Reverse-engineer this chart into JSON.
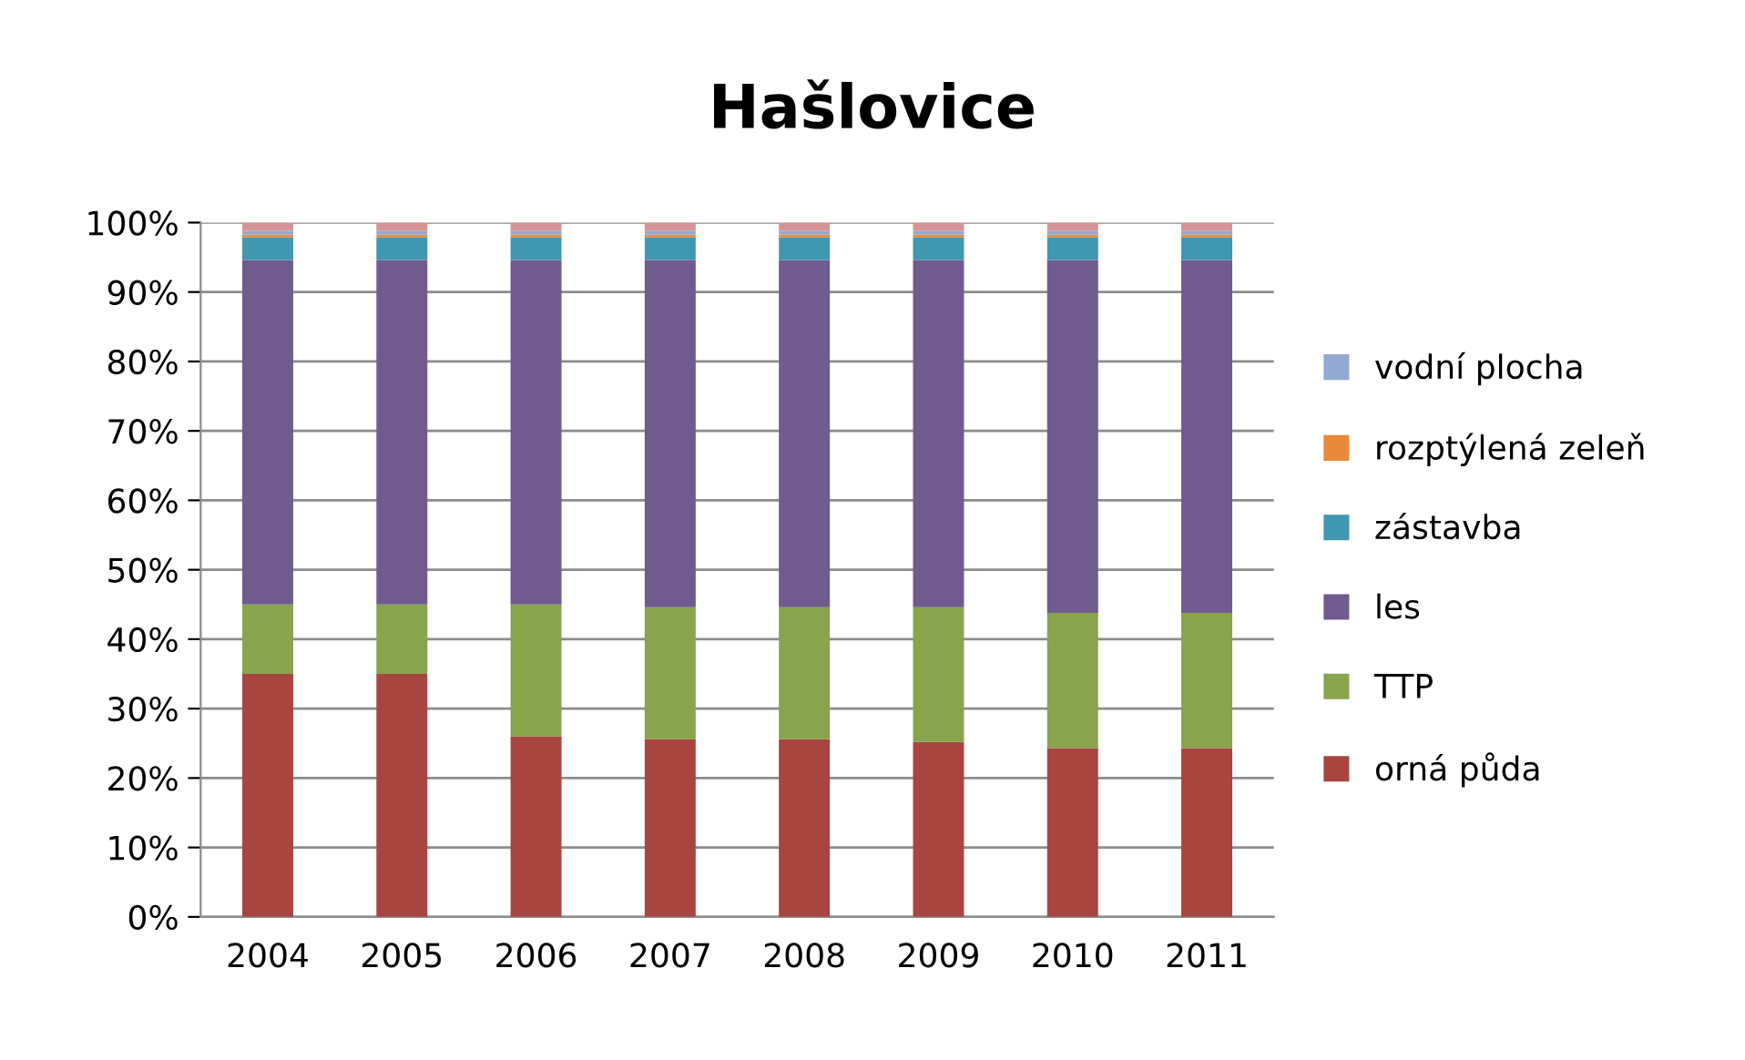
{
  "chart_data": {
    "type": "bar",
    "title": "Hašlovice",
    "stacked": true,
    "categories": [
      "2004",
      "2005",
      "2006",
      "2007",
      "2008",
      "2009",
      "2010",
      "2011"
    ],
    "series": [
      {
        "name": "orná půda",
        "color": "#a84541",
        "values": [
          35,
          35,
          26,
          25.6,
          25.6,
          25.2,
          24.3,
          24.3
        ]
      },
      {
        "name": "TTP",
        "color": "#88a44c",
        "values": [
          10,
          10,
          19,
          19,
          19,
          19.4,
          19.5,
          19.5
        ]
      },
      {
        "name": "les",
        "color": "#705a8e",
        "values": [
          49.6,
          49.6,
          49.6,
          50,
          50,
          50,
          50.8,
          50.8
        ]
      },
      {
        "name": "zástavba",
        "color": "#4097b0",
        "values": [
          3.3,
          3.3,
          3.3,
          3.3,
          3.3,
          3.3,
          3.3,
          3.3
        ]
      },
      {
        "name": "rozptýlená zeleň",
        "color": "#e98a3b",
        "values": [
          0.4,
          0.4,
          0.4,
          0.4,
          0.4,
          0.4,
          0.4,
          0.4
        ]
      },
      {
        "name": "vodní plocha",
        "color": "#92a9d2",
        "values": [
          0.5,
          0.5,
          0.5,
          0.5,
          0.5,
          0.5,
          0.5,
          0.5
        ]
      },
      {
        "color": "#d49493",
        "values": [
          1.2,
          1.2,
          1.2,
          1.2,
          1.2,
          1.2,
          1.2,
          1.2
        ]
      }
    ],
    "ylim": [
      0,
      100
    ],
    "yticks": [
      {
        "value": 0,
        "label": "0%"
      },
      {
        "value": 10,
        "label": "10%"
      },
      {
        "value": 20,
        "label": "20%"
      },
      {
        "value": 30,
        "label": "30%"
      },
      {
        "value": 40,
        "label": "40%"
      },
      {
        "value": 50,
        "label": "50%"
      },
      {
        "value": 60,
        "label": "60%"
      },
      {
        "value": 70,
        "label": "70%"
      },
      {
        "value": 80,
        "label": "80%"
      },
      {
        "value": 90,
        "label": "90%"
      },
      {
        "value": 100,
        "label": "100%"
      }
    ],
    "grid": "y",
    "legend": "right"
  }
}
